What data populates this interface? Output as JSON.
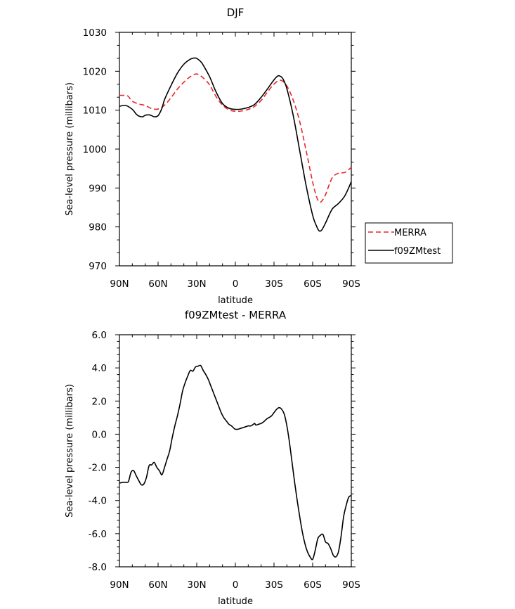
{
  "chart_data": [
    {
      "type": "line",
      "title": "DJF",
      "xlabel": "latitude",
      "ylabel": "Sea-level pressure (millibars)",
      "x_tick_labels": [
        "90N",
        "60N",
        "30N",
        "0",
        "30S",
        "60S",
        "90S"
      ],
      "x_tick_values": [
        90,
        60,
        30,
        0,
        -30,
        -60,
        -90
      ],
      "xlim": [
        90,
        -90
      ],
      "ylim": [
        970,
        1030
      ],
      "y_tick_values": [
        970,
        980,
        990,
        1000,
        1010,
        1020,
        1030
      ],
      "y_tick_labels": [
        "970",
        "980",
        "990",
        "1000",
        "1010",
        "1020",
        "1030"
      ],
      "grid": false,
      "legend_position": "right-middle",
      "series": [
        {
          "name": "MERRA",
          "color": "#e8262a",
          "dash": "dashed",
          "x": [
            90,
            85,
            83,
            80,
            75,
            70,
            65,
            60,
            55,
            50,
            45,
            40,
            35,
            30,
            25,
            20,
            15,
            10,
            5,
            0,
            -5,
            -10,
            -15,
            -20,
            -25,
            -30,
            -35,
            -40,
            -45,
            -50,
            -55,
            -60,
            -63,
            -65,
            -67,
            -70,
            -75,
            -80,
            -85,
            -90
          ],
          "y": [
            1013.8,
            1013.8,
            1013.5,
            1012.3,
            1011.6,
            1011.2,
            1010.4,
            1010.3,
            1011.3,
            1013.2,
            1015.4,
            1017.2,
            1018.6,
            1019.3,
            1018.3,
            1016.5,
            1013.5,
            1011.3,
            1010.1,
            1009.7,
            1009.8,
            1010.2,
            1011.0,
            1012.5,
            1014.7,
            1016.7,
            1017.7,
            1016.2,
            1012.5,
            1007.0,
            999.5,
            991.5,
            987.8,
            986.4,
            986.6,
            988.3,
            992.5,
            993.8,
            994.0,
            995.3
          ]
        },
        {
          "name": "f09ZMtest",
          "color": "#000000",
          "dash": "solid",
          "x": [
            90,
            85,
            80,
            77,
            75,
            72,
            70,
            67,
            65,
            63,
            60,
            57,
            55,
            50,
            45,
            40,
            35,
            32,
            30,
            27,
            25,
            20,
            15,
            10,
            5,
            0,
            -5,
            -10,
            -15,
            -20,
            -25,
            -30,
            -33,
            -35,
            -37,
            -40,
            -45,
            -50,
            -55,
            -60,
            -63,
            -65,
            -67,
            -70,
            -75,
            -80,
            -85,
            -90
          ],
          "y": [
            1011.0,
            1011.2,
            1010.2,
            1009.0,
            1008.5,
            1008.3,
            1008.7,
            1008.8,
            1008.6,
            1008.3,
            1008.6,
            1010.5,
            1012.7,
            1016.3,
            1019.5,
            1021.8,
            1023.1,
            1023.4,
            1023.3,
            1022.5,
            1021.6,
            1018.6,
            1014.7,
            1011.7,
            1010.5,
            1010.2,
            1010.3,
            1010.7,
            1011.5,
            1013.3,
            1015.5,
            1017.8,
            1018.8,
            1018.7,
            1018.0,
            1015.5,
            1008.5,
            999.5,
            990.5,
            983.0,
            980.2,
            979.0,
            979.2,
            981.0,
            984.5,
            986.0,
            988.0,
            991.6
          ]
        }
      ]
    },
    {
      "type": "line",
      "title": "f09ZMtest - MERRA",
      "xlabel": "latitude",
      "ylabel": "Sea-level pressure (millibars)",
      "x_tick_labels": [
        "90N",
        "60N",
        "30N",
        "0",
        "30S",
        "60S",
        "90S"
      ],
      "x_tick_values": [
        90,
        60,
        30,
        0,
        -30,
        -60,
        -90
      ],
      "xlim": [
        90,
        -90
      ],
      "ylim": [
        -8,
        6
      ],
      "y_tick_values": [
        -8,
        -6,
        -4,
        -2,
        0,
        2,
        4,
        6
      ],
      "y_tick_labels": [
        "-8.0",
        "-6.0",
        "-4.0",
        "-2.0",
        "0.0",
        "2.0",
        "4.0",
        "6.0"
      ],
      "grid": false,
      "series": [
        {
          "name": "",
          "color": "#000000",
          "dash": "solid",
          "x": [
            90,
            87,
            85,
            83,
            81,
            79,
            77,
            75,
            73,
            71,
            69,
            67,
            65,
            63,
            61,
            59,
            57,
            55,
            53,
            51,
            49,
            47,
            45,
            43,
            41,
            39,
            37,
            35,
            33,
            31,
            29,
            27,
            25,
            23,
            21,
            19,
            17,
            15,
            13,
            11,
            9,
            7,
            5,
            3,
            1,
            0,
            -2,
            -4,
            -6,
            -8,
            -10,
            -12,
            -14,
            -15,
            -16,
            -18,
            -20,
            -22,
            -24,
            -26,
            -28,
            -30,
            -32,
            -34,
            -36,
            -38,
            -40,
            -42,
            -44,
            -46,
            -48,
            -50,
            -52,
            -54,
            -56,
            -58,
            -60,
            -62,
            -64,
            -66,
            -68,
            -70,
            -72,
            -74,
            -76,
            -78,
            -80,
            -82,
            -84,
            -86,
            -88,
            -90
          ],
          "y": [
            -2.95,
            -2.9,
            -2.9,
            -2.85,
            -2.3,
            -2.2,
            -2.5,
            -2.8,
            -3.05,
            -3.0,
            -2.6,
            -1.9,
            -1.85,
            -1.7,
            -2.0,
            -2.2,
            -2.45,
            -2.0,
            -1.5,
            -1.0,
            -0.2,
            0.5,
            1.1,
            1.8,
            2.6,
            3.1,
            3.5,
            3.85,
            3.8,
            4.05,
            4.1,
            4.15,
            3.85,
            3.6,
            3.3,
            2.9,
            2.5,
            2.1,
            1.7,
            1.3,
            1.0,
            0.8,
            0.6,
            0.5,
            0.35,
            0.3,
            0.3,
            0.35,
            0.4,
            0.45,
            0.5,
            0.5,
            0.6,
            0.65,
            0.55,
            0.6,
            0.65,
            0.75,
            0.9,
            1.0,
            1.1,
            1.3,
            1.5,
            1.6,
            1.5,
            1.2,
            0.5,
            -0.5,
            -1.7,
            -2.9,
            -4.0,
            -5.0,
            -5.9,
            -6.6,
            -7.1,
            -7.4,
            -7.55,
            -7.0,
            -6.3,
            -6.1,
            -6.05,
            -6.5,
            -6.6,
            -6.9,
            -7.3,
            -7.4,
            -7.1,
            -6.2,
            -5.0,
            -4.3,
            -3.8,
            -3.7
          ]
        }
      ]
    }
  ]
}
